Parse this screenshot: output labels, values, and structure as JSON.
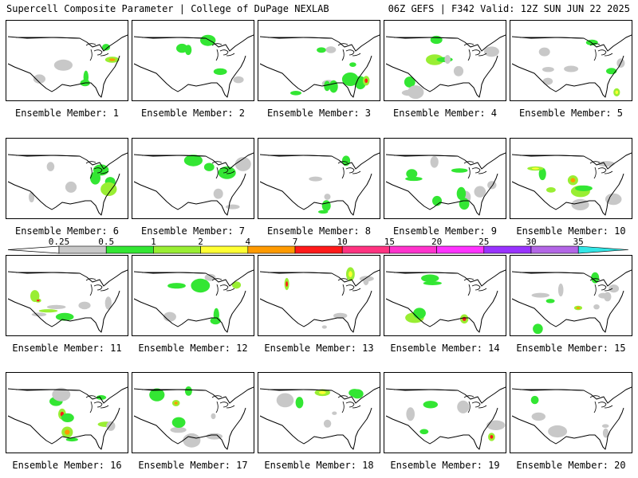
{
  "header": {
    "left": "Supercell Composite Parameter | College of DuPage NEXLAB",
    "right": "06Z GEFS | F342 Valid: 12Z SUN JUN 22 2025"
  },
  "colorbar": {
    "ticks": [
      "0.25",
      "0.5",
      "1",
      "2",
      "4",
      "7",
      "10",
      "15",
      "20",
      "25",
      "30",
      "35"
    ],
    "colors": [
      "#c8c8c8",
      "#33e633",
      "#99ee33",
      "#ffff33",
      "#ff9a00",
      "#ff1a1a",
      "#ff3380",
      "#ff33cc",
      "#ff33ff",
      "#9933ff",
      "#b366e6",
      "#33e6e6"
    ]
  },
  "members": [
    {
      "label": "Ensemble Member: 1"
    },
    {
      "label": "Ensemble Member: 2"
    },
    {
      "label": "Ensemble Member: 3"
    },
    {
      "label": "Ensemble Member: 4"
    },
    {
      "label": "Ensemble Member: 5"
    },
    {
      "label": "Ensemble Member: 6"
    },
    {
      "label": "Ensemble Member: 7"
    },
    {
      "label": "Ensemble Member: 8"
    },
    {
      "label": "Ensemble Member: 9"
    },
    {
      "label": "Ensemble Member: 10"
    },
    {
      "label": "Ensemble Member: 11"
    },
    {
      "label": "Ensemble Member: 12"
    },
    {
      "label": "Ensemble Member: 13"
    },
    {
      "label": "Ensemble Member: 14"
    },
    {
      "label": "Ensemble Member: 15"
    },
    {
      "label": "Ensemble Member: 16"
    },
    {
      "label": "Ensemble Member: 17"
    },
    {
      "label": "Ensemble Member: 18"
    },
    {
      "label": "Ensemble Member: 19"
    },
    {
      "label": "Ensemble Member: 20"
    }
  ]
}
